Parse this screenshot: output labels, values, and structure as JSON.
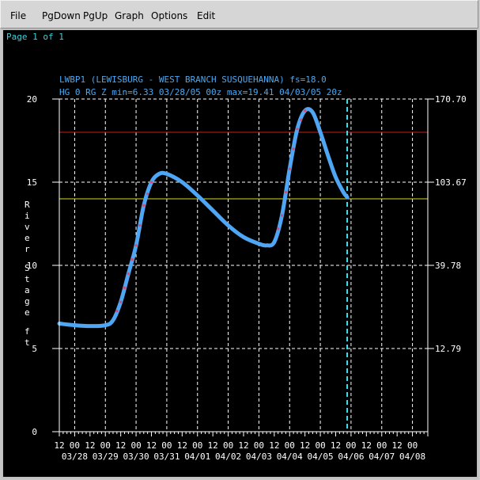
{
  "menu": {
    "items": [
      {
        "label": "File"
      },
      {
        "label": "PgDown"
      },
      {
        "label": "PgUp"
      },
      {
        "label": "Graph"
      },
      {
        "label": "Options"
      },
      {
        "label": "Edit"
      }
    ]
  },
  "page_indicator": "Page 1 of 1",
  "colors": {
    "background": "#000000",
    "grid": "#ffffff",
    "header_text": "#4aa8f0",
    "page_text": "#3fd0d8",
    "series": "#4ea6f4",
    "point": "#d44a6a",
    "flood_line": "#c81e1e",
    "action_line": "#d8d820",
    "current_time_line": "#40e0f0"
  },
  "chart_data": {
    "type": "line",
    "title": "LWBP1 (LEWISBURG - WEST BRANCH SUSQUEHANNA) fs=18.0",
    "subtitle": "HG 0 RG Z min=6.33 03/28/05 00z max=19.41 04/03/05 20z",
    "ylabel": "River Stage ft",
    "ylim": [
      0,
      20
    ],
    "y_ticks": [
      "0",
      "5",
      "10",
      "15",
      "20"
    ],
    "y2_ticks": [
      "12.79",
      "39.78",
      "103.67",
      "170.70"
    ],
    "y2_tick_positions": [
      5,
      10,
      15,
      20
    ],
    "x_range_hours": [
      -12,
      276
    ],
    "x_hour_labels": [
      "12",
      "00",
      "12",
      "00",
      "12",
      "00",
      "12",
      "00",
      "12",
      "00",
      "12",
      "00",
      "12",
      "00",
      "12",
      "00",
      "12",
      "00",
      "12",
      "00",
      "12",
      "00",
      "12",
      "00"
    ],
    "x_date_labels": [
      "03/28",
      "03/29",
      "03/30",
      "03/31",
      "04/01",
      "04/02",
      "04/03",
      "04/04",
      "04/05",
      "04/06",
      "04/07",
      "04/08"
    ],
    "flood_stage": 18.0,
    "action_stage": 14.0,
    "current_time_hour": 213,
    "series": [
      {
        "values": [
          [
            -12,
            6.5
          ],
          [
            0,
            6.4
          ],
          [
            12,
            6.35
          ],
          [
            24,
            6.4
          ],
          [
            30,
            6.7
          ],
          [
            36,
            7.8
          ],
          [
            42,
            9.5
          ],
          [
            48,
            11.2
          ],
          [
            54,
            13.6
          ],
          [
            60,
            15.0
          ],
          [
            66,
            15.5
          ],
          [
            72,
            15.5
          ],
          [
            84,
            15.0
          ],
          [
            96,
            14.2
          ],
          [
            108,
            13.3
          ],
          [
            120,
            12.4
          ],
          [
            132,
            11.7
          ],
          [
            144,
            11.3
          ],
          [
            150,
            11.2
          ],
          [
            156,
            11.4
          ],
          [
            162,
            13.0
          ],
          [
            168,
            15.8
          ],
          [
            174,
            18.2
          ],
          [
            180,
            19.3
          ],
          [
            186,
            19.2
          ],
          [
            192,
            18.0
          ],
          [
            198,
            16.6
          ],
          [
            204,
            15.3
          ],
          [
            210,
            14.4
          ],
          [
            213,
            14.1
          ]
        ]
      }
    ]
  }
}
